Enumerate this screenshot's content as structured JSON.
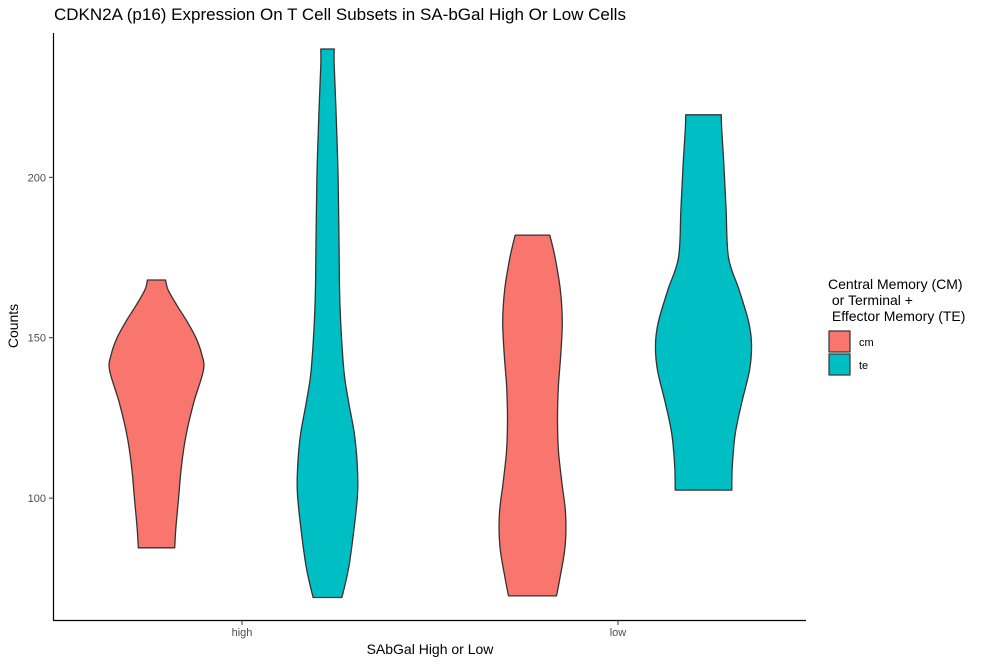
{
  "chart_data": {
    "type": "violin",
    "title": "CDKN2A (p16) Expression On T Cell Subsets in SA-bGal High Or Low Cells",
    "xlabel": "SAbGal High or Low",
    "ylabel": "Counts",
    "categories": [
      "high",
      "low"
    ],
    "ylim": [
      62,
      245
    ],
    "yticks": [
      100,
      150,
      200
    ],
    "grid": false,
    "legend": {
      "title_lines": [
        "Central Memory (CM)",
        " or Terminal +",
        " Effector Memory (TE)"
      ],
      "placement": "right",
      "entries": [
        {
          "label": "cm",
          "color": "#F8766D"
        },
        {
          "label": "te",
          "color": "#00BFC4"
        }
      ]
    },
    "series": [
      {
        "name": "cm",
        "color": "#F8766D",
        "violins": [
          {
            "category": "high",
            "profile": [
              [
                84.5,
                0.38
              ],
              [
                90,
                0.4
              ],
              [
                100,
                0.46
              ],
              [
                110,
                0.52
              ],
              [
                120,
                0.62
              ],
              [
                130,
                0.78
              ],
              [
                140,
                0.98
              ],
              [
                145,
                0.94
              ],
              [
                150,
                0.82
              ],
              [
                155,
                0.64
              ],
              [
                160,
                0.43
              ],
              [
                165,
                0.24
              ],
              [
                168,
                0.19
              ]
            ]
          },
          {
            "category": "low",
            "profile": [
              [
                69.5,
                0.5
              ],
              [
                75,
                0.57
              ],
              [
                85,
                0.68
              ],
              [
                95,
                0.69
              ],
              [
                105,
                0.61
              ],
              [
                115,
                0.54
              ],
              [
                125,
                0.52
              ],
              [
                135,
                0.54
              ],
              [
                145,
                0.59
              ],
              [
                155,
                0.62
              ],
              [
                165,
                0.58
              ],
              [
                175,
                0.47
              ],
              [
                182,
                0.36
              ]
            ]
          }
        ]
      },
      {
        "name": "te",
        "color": "#00BFC4",
        "violins": [
          {
            "category": "high",
            "profile": [
              [
                69,
                0.3
              ],
              [
                80,
                0.46
              ],
              [
                100,
                0.62
              ],
              [
                110,
                0.62
              ],
              [
                120,
                0.56
              ],
              [
                130,
                0.44
              ],
              [
                140,
                0.34
              ],
              [
                160,
                0.26
              ],
              [
                180,
                0.24
              ],
              [
                200,
                0.22
              ],
              [
                220,
                0.18
              ],
              [
                235,
                0.14
              ],
              [
                240,
                0.14
              ]
            ]
          },
          {
            "category": "low",
            "profile": [
              [
                102.5,
                0.59
              ],
              [
                110,
                0.6
              ],
              [
                120,
                0.66
              ],
              [
                130,
                0.8
              ],
              [
                140,
                0.96
              ],
              [
                148,
                1.0
              ],
              [
                155,
                0.94
              ],
              [
                165,
                0.74
              ],
              [
                175,
                0.52
              ],
              [
                190,
                0.47
              ],
              [
                205,
                0.42
              ],
              [
                215,
                0.38
              ],
              [
                219.5,
                0.37
              ]
            ]
          }
        ]
      }
    ]
  }
}
